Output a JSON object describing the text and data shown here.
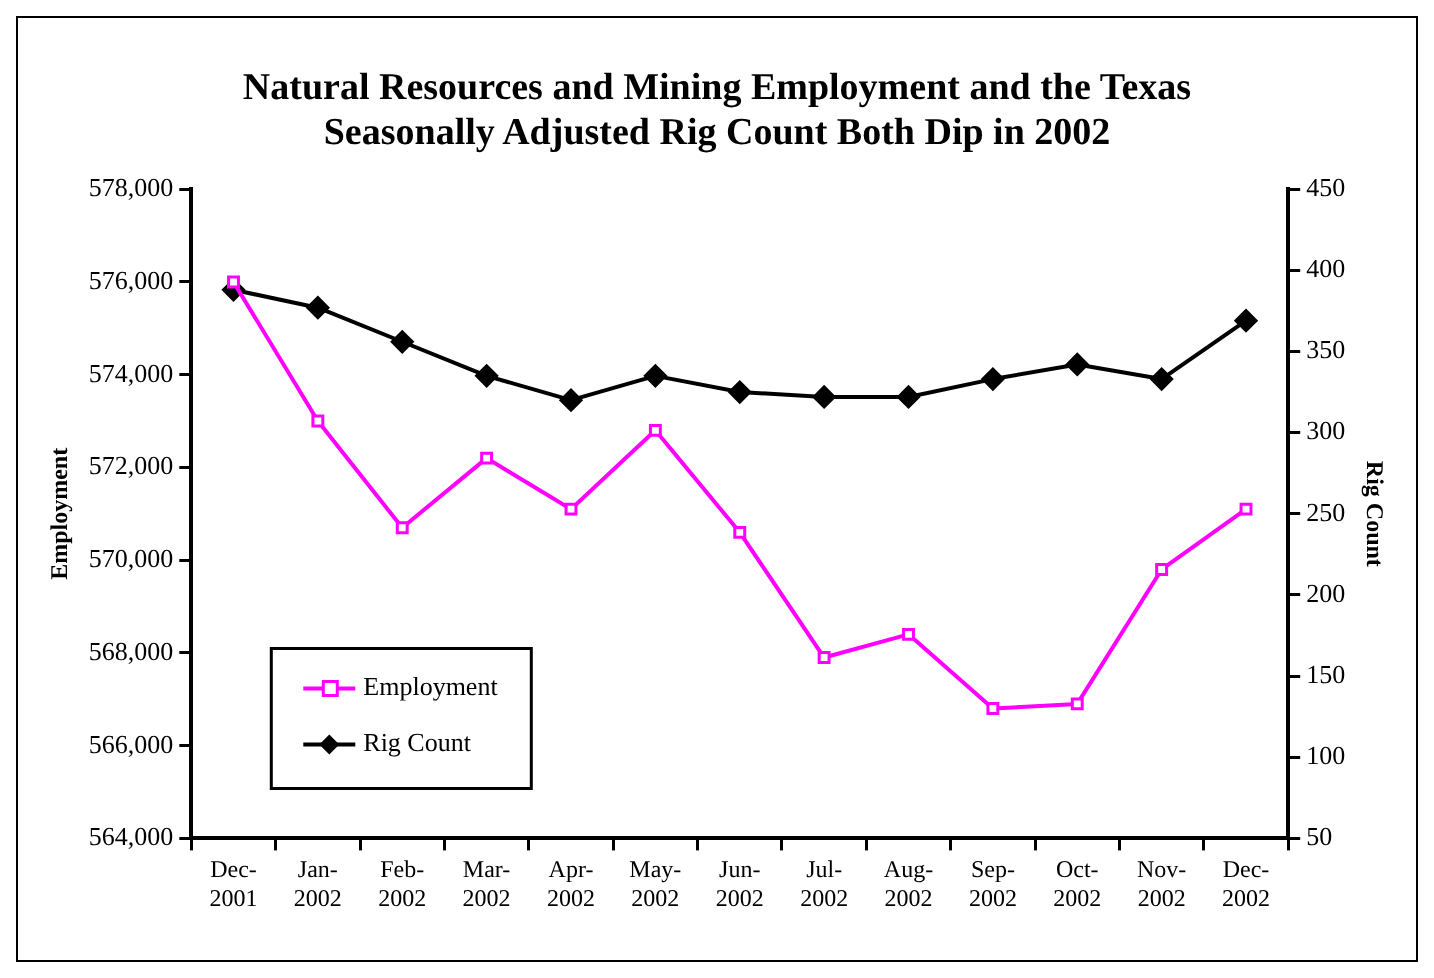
{
  "chart_data": {
    "type": "line",
    "title": "Natural Resources and Mining Employment and the Texas Seasonally Adjusted Rig Count Both Dip in 2002",
    "ylabel": "Employment",
    "y2label": "Rig Count",
    "categories": [
      "Dec-2001",
      "Jan-2002",
      "Feb-2002",
      "Mar-2002",
      "Apr-2002",
      "May-2002",
      "Jun-2002",
      "Jul-2002",
      "Aug-2002",
      "Sep-2002",
      "Oct-2002",
      "Nov-2002",
      "Dec-2002"
    ],
    "series": [
      {
        "name": "Employment",
        "color": "#ff00ff",
        "marker": "square",
        "values": [
          576000,
          573000,
          570700,
          572200,
          571100,
          572800,
          570600,
          567900,
          568400,
          566800,
          566900,
          569800,
          571100
        ]
      },
      {
        "name": "Rig Count",
        "color": "#000000",
        "marker": "diamond",
        "axis": "y2",
        "values": [
          388,
          377,
          356,
          335,
          320,
          335,
          325,
          322,
          322,
          333,
          342,
          333,
          369
        ]
      }
    ],
    "ylim": [
      564000,
      578000
    ],
    "yticks": [
      {
        "value": 564000,
        "label": "564,000"
      },
      {
        "value": 566000,
        "label": "566,000"
      },
      {
        "value": 568000,
        "label": "568,000"
      },
      {
        "value": 570000,
        "label": "570,000"
      },
      {
        "value": 572000,
        "label": "572,000"
      },
      {
        "value": 574000,
        "label": "574,000"
      },
      {
        "value": 576000,
        "label": "576,000"
      },
      {
        "value": 578000,
        "label": "578,000"
      }
    ],
    "y2lim": [
      50,
      450
    ],
    "y2ticks": [
      50,
      100,
      150,
      200,
      250,
      300,
      350,
      400,
      450
    ],
    "grid": false,
    "legend": "bottom left",
    "line_style": "solid"
  }
}
